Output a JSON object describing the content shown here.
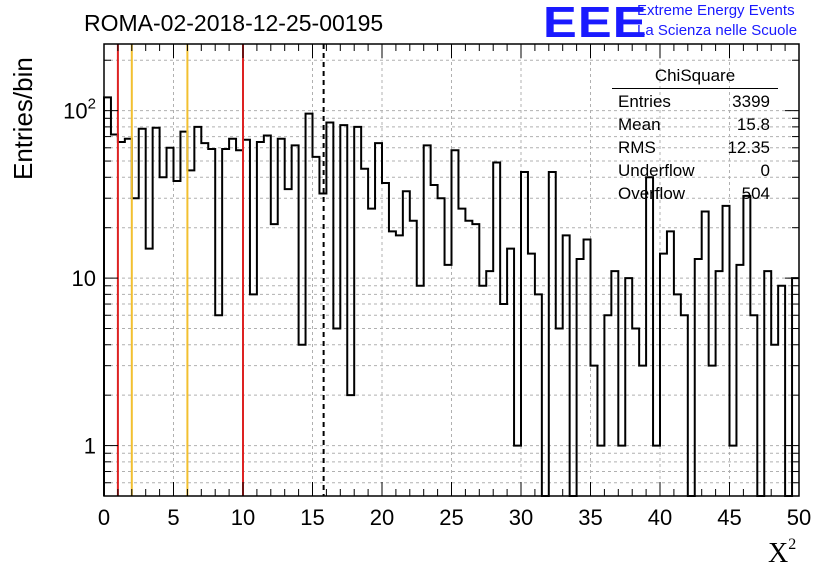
{
  "header": {
    "title": "ROMA-02-2018-12-25-00195",
    "logo_text": "EEE",
    "logo_line1": "Extreme Energy Events",
    "logo_line2": "La Scienza nelle Scuole"
  },
  "stats": {
    "title": "ChiSquare",
    "rows": [
      {
        "label": "Entries",
        "value": "3399"
      },
      {
        "label": "Mean",
        "value": "15.8"
      },
      {
        "label": "RMS",
        "value": "12.35"
      },
      {
        "label": "Underflow",
        "value": "0"
      },
      {
        "label": "Overflow",
        "value": "504"
      }
    ]
  },
  "colors": {
    "histogram": "#000000",
    "red_lines": "#dd2222",
    "yellow_lines": "#f2c030",
    "grid": "#b0b0b0",
    "logo": "#1a1aff"
  },
  "chart_data": {
    "type": "bar",
    "style": "step-histogram",
    "title": "ROMA-02-2018-12-25-00195",
    "xlabel": "X²",
    "ylabel": "Entries/bin",
    "xlim": [
      0,
      50
    ],
    "ylim": [
      0.5,
      250
    ],
    "yscale": "log",
    "grid": true,
    "x_ticks": [
      "0",
      "5",
      "10",
      "15",
      "20",
      "25",
      "30",
      "35",
      "40",
      "45",
      "50"
    ],
    "y_ticks": [
      "1",
      "10",
      "10²"
    ],
    "bin_width": 0.5,
    "bin_start": 0,
    "values": [
      120,
      72,
      65,
      68,
      30,
      78,
      15,
      79,
      40,
      60,
      38,
      75,
      44,
      80,
      64,
      59,
      6,
      59,
      68,
      58,
      67,
      8,
      65,
      71,
      21,
      68,
      34,
      62,
      4,
      96,
      53,
      32,
      85,
      5,
      82,
      2,
      80,
      45,
      26,
      64,
      37,
      19,
      18,
      33,
      22,
      9,
      62,
      36,
      30,
      12,
      58,
      26,
      22,
      21,
      9,
      11,
      49,
      7,
      15,
      1,
      43,
      14,
      8,
      0,
      43,
      5,
      18,
      0,
      13,
      17,
      3,
      1,
      6,
      11,
      1,
      10,
      5,
      3,
      40,
      1,
      14,
      19,
      8,
      6,
      0,
      13,
      25,
      3,
      11,
      27,
      1,
      12,
      31,
      6,
      0,
      11,
      4,
      9,
      0,
      10
    ],
    "vertical_lines": [
      {
        "x": 1,
        "color": "red"
      },
      {
        "x": 2,
        "color": "yellow"
      },
      {
        "x": 6,
        "color": "yellow"
      },
      {
        "x": 10,
        "color": "red"
      },
      {
        "x": 15.8,
        "color": "black",
        "style": "dashed"
      }
    ]
  }
}
